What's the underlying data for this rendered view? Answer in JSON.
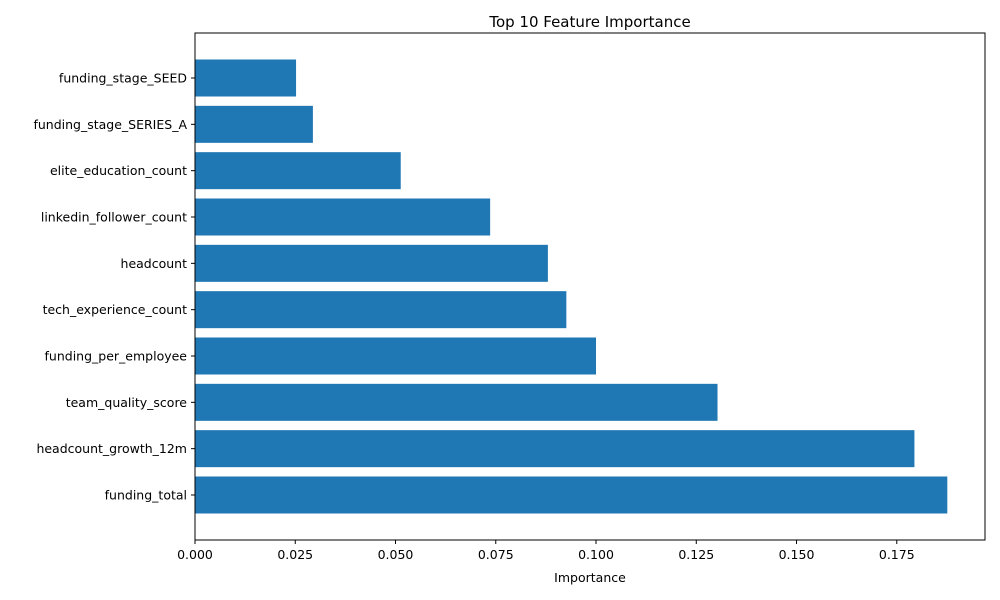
{
  "chart_data": {
    "type": "bar",
    "orientation": "horizontal",
    "title": "Top 10 Feature Importance",
    "xlabel": "Importance",
    "ylabel": "",
    "categories": [
      "funding_stage_SEED",
      "funding_stage_SERIES_A",
      "elite_education_count",
      "linkedin_follower_count",
      "headcount",
      "tech_experience_count",
      "funding_per_employee",
      "team_quality_score",
      "headcount_growth_12m",
      "funding_total"
    ],
    "values": [
      0.0252,
      0.0294,
      0.0513,
      0.0736,
      0.088,
      0.0926,
      0.1,
      0.1303,
      0.1794,
      0.1876
    ],
    "xlim": [
      0,
      0.197
    ],
    "xticks": [
      "0.000",
      "0.025",
      "0.050",
      "0.075",
      "0.100",
      "0.125",
      "0.150",
      "0.175"
    ],
    "bar_color": "#1f77b4",
    "grid": false,
    "legend": "none"
  }
}
